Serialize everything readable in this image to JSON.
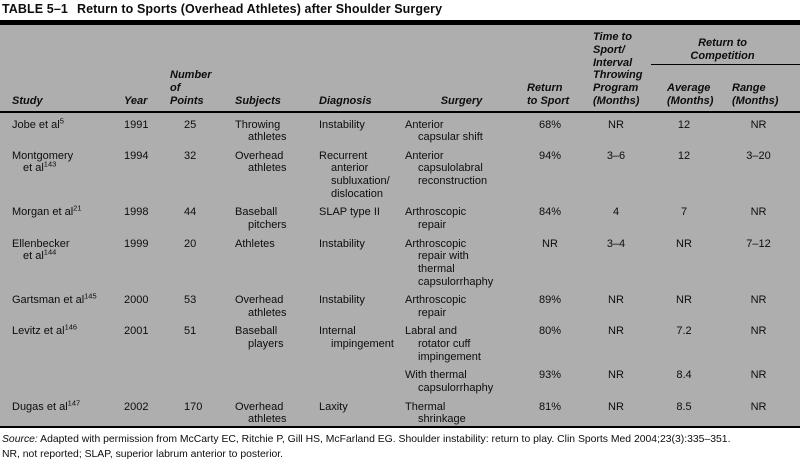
{
  "title": {
    "label": "TABLE 5–1",
    "text": "Return to Sports (Overhead Athletes) after Shoulder Surgery"
  },
  "colors": {
    "table_background": "#aeaeae",
    "rule": "#000000",
    "text": "#0d0d0d"
  },
  "table": {
    "header": {
      "study": "Study",
      "year": "Year",
      "points": "Number\nof\nPoints",
      "subjects": "Subjects",
      "diagnosis": "Diagnosis",
      "surgery": "Surgery",
      "return_to_sport": "Return\nto Sport",
      "time_to_sport": "Time to\nSport/\nInterval\nThrowing\nProgram\n(Months)",
      "competition_group": "Return to\nCompetition",
      "average": "Average\n(Months)",
      "range": "Range\n(Months)"
    },
    "rows": [
      {
        "study": "Jobe et al",
        "ref": "5",
        "year": "1991",
        "points": "25",
        "subjects": "Throwing\nathletes",
        "diagnosis": "Instability",
        "surgery": "Anterior\ncapsular shift",
        "return_to_sport": "68%",
        "time_to_sport": "NR",
        "average": "12",
        "range": "NR"
      },
      {
        "study": "Montgomery\net al",
        "ref": "143",
        "year": "1994",
        "points": "32",
        "subjects": "Overhead\nathletes",
        "diagnosis": "Recurrent\nanterior\nsubluxation/\ndislocation",
        "surgery": "Anterior\ncapsulolabral\nreconstruction",
        "return_to_sport": "94%",
        "time_to_sport": "3–6",
        "average": "12",
        "range": "3–20"
      },
      {
        "study": "Morgan et al",
        "ref": "21",
        "year": "1998",
        "points": "44",
        "subjects": "Baseball\npitchers",
        "diagnosis": "SLAP type II",
        "surgery": "Arthroscopic\nrepair",
        "return_to_sport": "84%",
        "time_to_sport": "4",
        "average": "7",
        "range": "NR"
      },
      {
        "study": "Ellenbecker\net al",
        "ref": "144",
        "year": "1999",
        "points": "20",
        "subjects": "Athletes",
        "diagnosis": "Instability",
        "surgery": "Arthroscopic\nrepair with\nthermal\ncapsulorrhaphy",
        "return_to_sport": "NR",
        "time_to_sport": "3–4",
        "average": "NR",
        "range": "7–12"
      },
      {
        "study": "Gartsman et al",
        "ref": "145",
        "year": "2000",
        "points": "53",
        "subjects": "Overhead\nathletes",
        "diagnosis": "Instability",
        "surgery": "Arthroscopic\nrepair",
        "return_to_sport": "89%",
        "time_to_sport": "NR",
        "average": "NR",
        "range": "NR"
      },
      {
        "study": "Levitz et al",
        "ref": "146",
        "year": "2001",
        "points": "51",
        "subjects": "Baseball\nplayers",
        "diagnosis": "Internal\nimpingement",
        "surgery": "Labral and\nrotator cuff\nimpingement",
        "return_to_sport": "80%",
        "time_to_sport": "NR",
        "average": "7.2",
        "range": "NR"
      },
      {
        "study": "",
        "ref": "",
        "year": "",
        "points": "",
        "subjects": "",
        "diagnosis": "",
        "surgery": "With thermal\ncapsulorrhaphy",
        "return_to_sport": "93%",
        "time_to_sport": "NR",
        "average": "8.4",
        "range": "NR"
      },
      {
        "study": "Dugas et al",
        "ref": "147",
        "year": "2002",
        "points": "170",
        "subjects": "Overhead\nathletes",
        "diagnosis": "Laxity",
        "surgery": "Thermal\nshrinkage",
        "return_to_sport": "81%",
        "time_to_sport": "NR",
        "average": "8.5",
        "range": "NR"
      }
    ]
  },
  "footnotes": {
    "source_label": "Source:",
    "source_text": "Adapted with permission from McCarty EC, Ritchie P, Gill HS, McFarland EG. Shoulder instability: return to play. Clin Sports Med 2004;23(3):335–351.",
    "abbreviations": "NR, not reported; SLAP, superior labrum anterior to posterior."
  }
}
